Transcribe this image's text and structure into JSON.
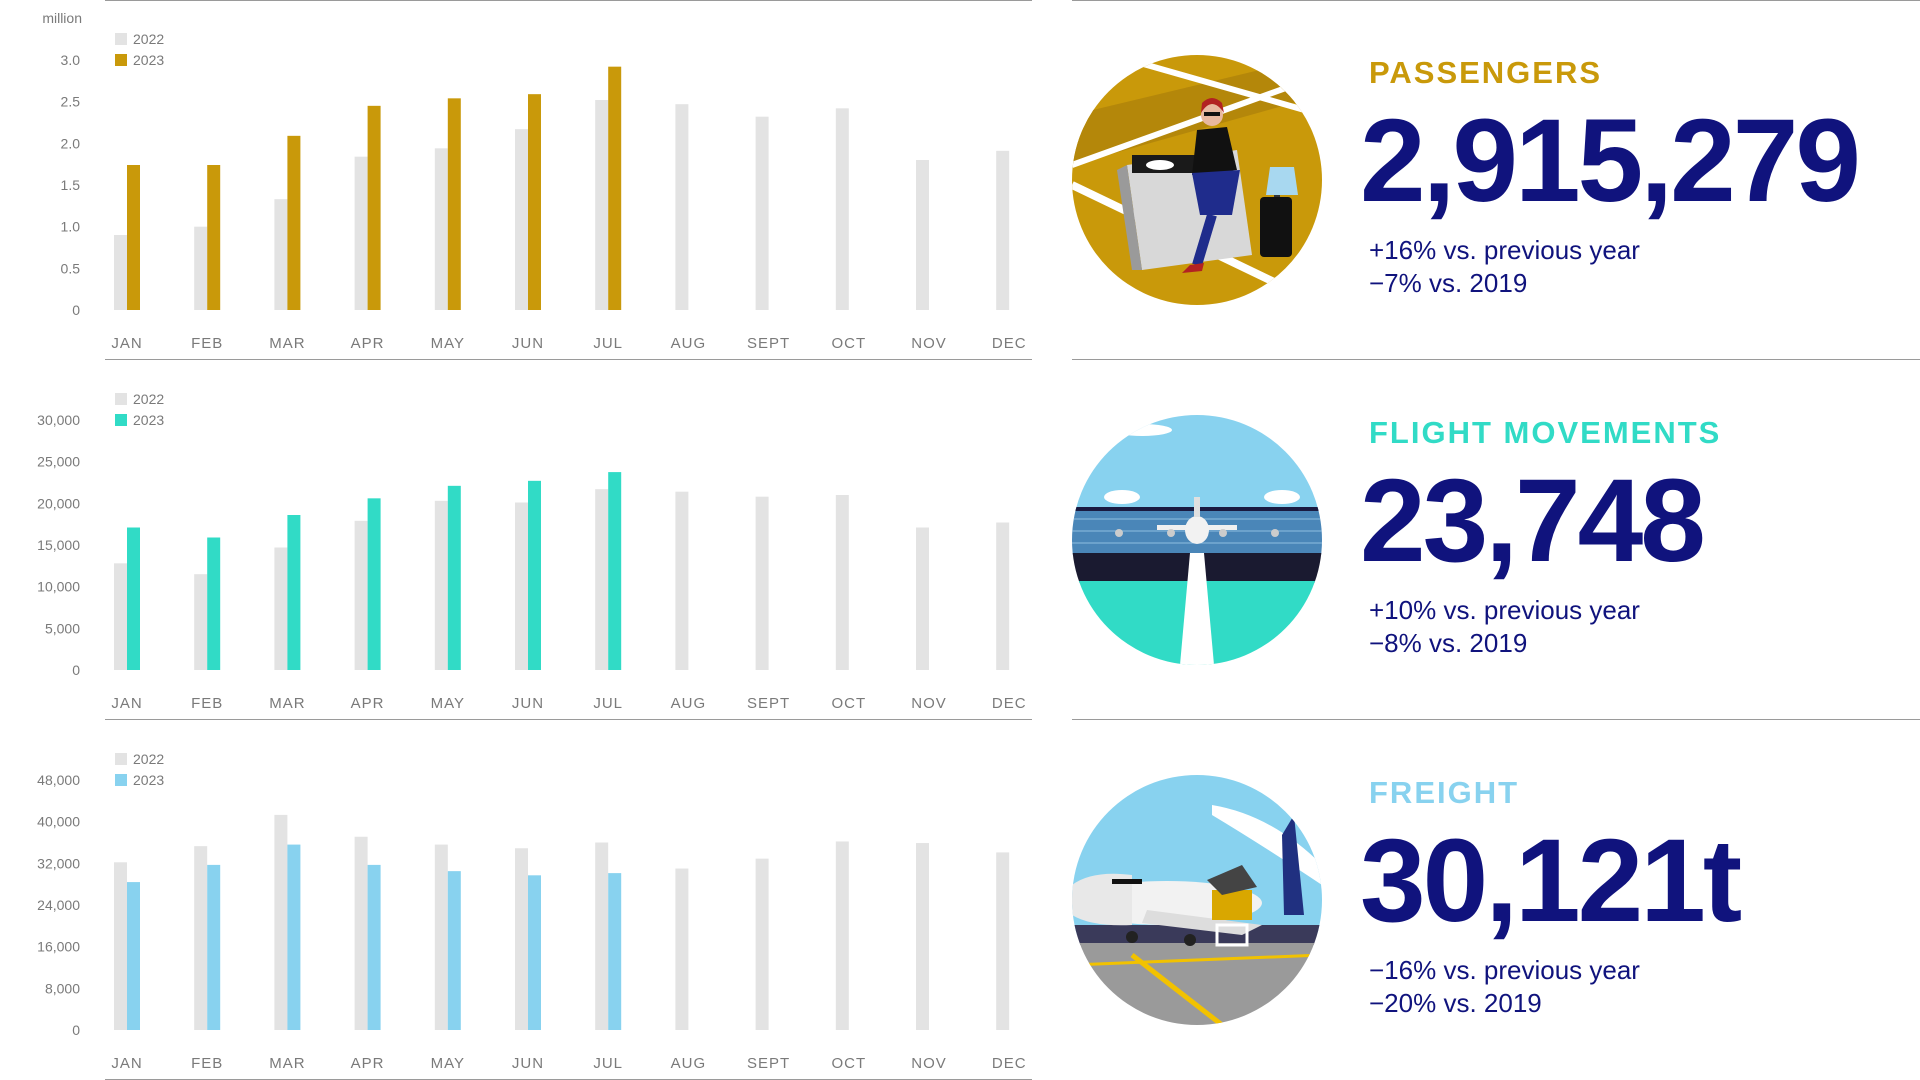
{
  "chart_data": [
    {
      "type": "bar",
      "unit_label": "million",
      "categories": [
        "JAN",
        "FEB",
        "MAR",
        "APR",
        "MAY",
        "JUN",
        "JUL",
        "AUG",
        "SEPT",
        "OCT",
        "NOV",
        "DEC"
      ],
      "yticks": [
        "0",
        "0.5",
        "1.0",
        "1.5",
        "2.0",
        "2.5",
        "3.0"
      ],
      "ylim": [
        0,
        3.0
      ],
      "series": [
        {
          "name": "2022",
          "color": "#e3e3e3",
          "values": [
            0.9,
            1.0,
            1.33,
            1.84,
            1.94,
            2.17,
            2.52,
            2.47,
            2.32,
            2.42,
            1.8,
            1.91
          ]
        },
        {
          "name": "2023",
          "color": "#c9990a",
          "values": [
            1.74,
            1.74,
            2.09,
            2.45,
            2.54,
            2.59,
            2.92,
            null,
            null,
            null,
            null,
            null
          ]
        }
      ]
    },
    {
      "type": "bar",
      "unit_label": "",
      "categories": [
        "JAN",
        "FEB",
        "MAR",
        "APR",
        "MAY",
        "JUN",
        "JUL",
        "AUG",
        "SEPT",
        "OCT",
        "NOV",
        "DEC"
      ],
      "yticks": [
        "0",
        "5,000",
        "10,000",
        "15,000",
        "20,000",
        "25,000",
        "30,000"
      ],
      "ylim": [
        0,
        30000
      ],
      "series": [
        {
          "name": "2022",
          "color": "#e3e3e3",
          "values": [
            12800,
            11500,
            14700,
            17900,
            20300,
            20100,
            21700,
            21400,
            20800,
            21000,
            17100,
            17700
          ]
        },
        {
          "name": "2023",
          "color": "#31dbc6",
          "values": [
            17100,
            15900,
            18600,
            20600,
            22100,
            22700,
            23748,
            null,
            null,
            null,
            null,
            null
          ]
        }
      ]
    },
    {
      "type": "bar",
      "unit_label": "",
      "categories": [
        "JAN",
        "FEB",
        "MAR",
        "APR",
        "MAY",
        "JUN",
        "JUL",
        "AUG",
        "SEPT",
        "OCT",
        "NOV",
        "DEC"
      ],
      "yticks": [
        "0",
        "8,000",
        "16,000",
        "24,000",
        "32,000",
        "40,000",
        "48,000"
      ],
      "ylim": [
        0,
        48000
      ],
      "series": [
        {
          "name": "2022",
          "color": "#e3e3e3",
          "values": [
            32200,
            35300,
            41300,
            37100,
            35600,
            34900,
            36000,
            31000,
            32900,
            36200,
            35900,
            34100
          ]
        },
        {
          "name": "2023",
          "color": "#88d2ef",
          "values": [
            28400,
            31700,
            35600,
            31700,
            30500,
            29700,
            30121,
            null,
            null,
            null,
            null,
            null
          ]
        }
      ]
    }
  ],
  "metrics": [
    {
      "label": "PASSENGERS",
      "value": "2,915,279",
      "sub1": "+16% vs. previous year",
      "sub2": "−7% vs. 2019",
      "color": "#c9990a"
    },
    {
      "label": "FLIGHT MOVEMENTS",
      "value": "23,748",
      "sub1": "+10% vs. previous year",
      "sub2": "−8% vs. 2019",
      "color": "#31dbc6"
    },
    {
      "label": "FREIGHT",
      "value": "30,121t",
      "sub1": "−16% vs. previous year",
      "sub2": "−20% vs. 2019",
      "color": "#88d2ef"
    }
  ]
}
